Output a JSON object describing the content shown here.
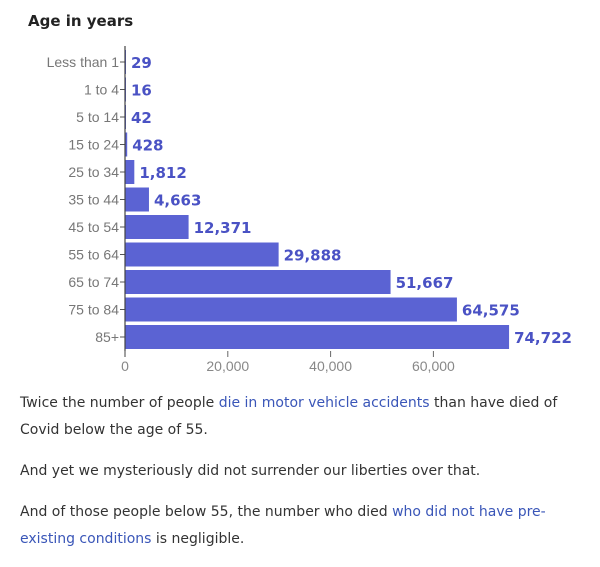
{
  "chart_data": {
    "type": "bar",
    "orientation": "horizontal",
    "title": "Age in years",
    "categories": [
      "Less than 1",
      "1 to 4",
      "5 to 14",
      "15 to 24",
      "25 to 34",
      "35 to 44",
      "45 to 54",
      "55 to 64",
      "65 to 74",
      "75 to 84",
      "85+"
    ],
    "values": [
      29,
      16,
      42,
      428,
      1812,
      4663,
      12371,
      29888,
      51667,
      64575,
      74722
    ],
    "value_labels": [
      "29",
      "16",
      "42",
      "428",
      "1,812",
      "4,663",
      "12,371",
      "29,888",
      "51,667",
      "64,575",
      "74,722"
    ],
    "x_ticks": [
      0,
      20000,
      40000,
      60000
    ],
    "x_tick_labels": [
      "0",
      "20,000",
      "40,000",
      "60,000"
    ],
    "xlim": [
      0,
      74722
    ],
    "bar_color": "#5b63d3",
    "label_color": "#4a52c4",
    "grid": false,
    "legend": "none"
  },
  "article": {
    "p1": {
      "before": "Twice the number of people ",
      "link": "die in motor vehicle accidents",
      "after": " than have died of Covid below the age of 55."
    },
    "p2": "And yet we mysteriously did not surrender our liberties over that.",
    "p3": {
      "before": "And of those people below 55, the number who died ",
      "link": "who did not have pre-existing conditions",
      "after": " is negligible."
    },
    "link_color": "#3a56b8"
  }
}
